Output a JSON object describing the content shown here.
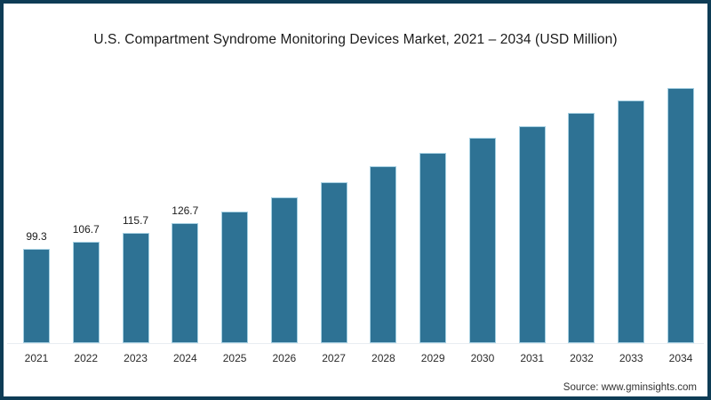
{
  "frame": {
    "border_color": "#0E3C55",
    "background_color": "#FFFFFF"
  },
  "title": "U.S. Compartment Syndrome Monitoring Devices Market, 2021 – 2034 (USD Million)",
  "source_text": "Source: www.gminsights.com",
  "chart_data": {
    "type": "bar",
    "title": "U.S. Compartment Syndrome Monitoring Devices Market, 2021 – 2034 (USD Million)",
    "xlabel": "",
    "ylabel": "",
    "categories": [
      "2021",
      "2022",
      "2023",
      "2024",
      "2025",
      "2026",
      "2027",
      "2028",
      "2029",
      "2030",
      "2031",
      "2032",
      "2033",
      "2034"
    ],
    "values": [
      99.3,
      106.7,
      115.7,
      126.7,
      138.6,
      153.2,
      169.8,
      186.1,
      200.5,
      216.4,
      228.6,
      242.6,
      255.7,
      268.9
    ],
    "data_labels": [
      "99.3",
      "106.7",
      "115.7",
      "126.7",
      "",
      "",
      "",
      "",
      "",
      "",
      "",
      "",
      "",
      ""
    ],
    "unlabeled_values_are_estimates": true,
    "ylim": [
      0,
      300
    ],
    "grid": false,
    "legend": false,
    "bar_color": "#2E7294",
    "bar_edge_color": "#A6D0E2",
    "baseline_color": "#E8EDF1"
  }
}
